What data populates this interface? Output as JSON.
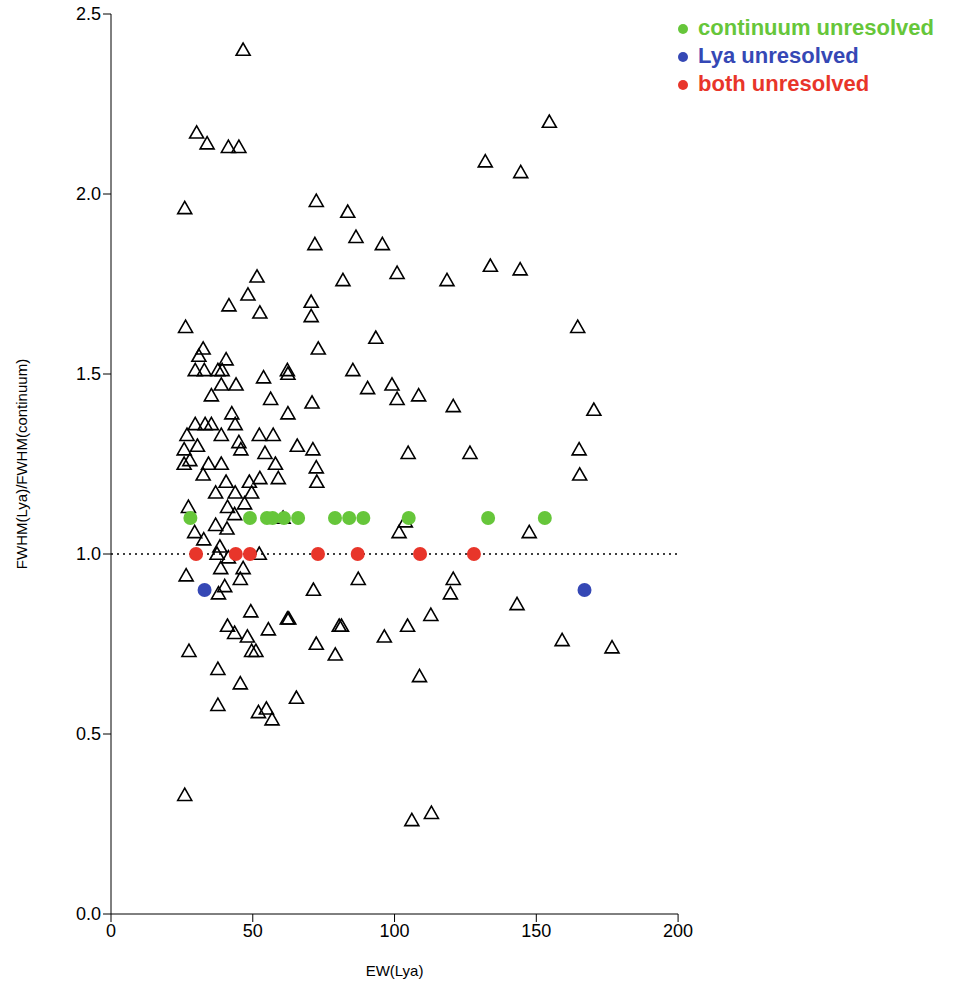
{
  "chart_data": {
    "type": "scatter",
    "x_label": "EW(Lya)",
    "y_label": "FWHM(Lya)/FWHM(continuum)",
    "xlim": [
      0,
      200
    ],
    "ylim": [
      0,
      2.5
    ],
    "xticks": [
      0,
      50,
      100,
      150,
      200
    ],
    "yticks": [
      {
        "value": 0,
        "label": "0.0"
      },
      {
        "value": 0.5,
        "label": "0.5"
      },
      {
        "value": 1,
        "label": "1.0"
      },
      {
        "value": 1.5,
        "label": "1.5"
      },
      {
        "value": 2,
        "label": "2.0"
      },
      {
        "value": 2.5,
        "label": "2.5"
      }
    ],
    "legend": "top",
    "reference_lines": [
      {
        "y": 1,
        "line_style": "dotted"
      }
    ],
    "series": [
      {
        "color": "#000000",
        "marker": "triangle",
        "x": [
          46.6,
          30.2,
          33.9,
          41.4,
          45.1,
          26.0,
          154.6,
          132.0,
          144.5,
          72.4,
          83.5,
          86.4,
          95.7,
          71.9,
          81.8,
          100.9,
          133.8,
          144.3,
          118.5,
          51.5,
          48.3,
          41.6,
          52.5,
          70.6,
          70.6,
          26.3,
          164.6,
          93.4,
          73.1,
          32.5,
          31.0,
          32.9,
          29.7,
          37.7,
          39.2,
          40.6,
          53.8,
          62.2,
          62.4,
          85.3,
          90.5,
          99.1,
          100.9,
          108.5,
          120.7,
          44.1,
          38.9,
          56.3,
          70.9,
          35.4,
          42.6,
          62.4,
          170.3,
          35.4,
          29.7,
          33.2,
          43.8,
          38.9,
          26.8,
          52.3,
          57.2,
          25.8,
          30.5,
          45.1,
          45.8,
          65.7,
          71.2,
          104.8,
          126.6,
          165.1,
          27.8,
          34.4,
          38.9,
          54.3,
          58.0,
          72.4,
          72.6,
          165.3,
          25.8,
          32.5,
          40.6,
          48.8,
          52.5,
          59.0,
          43.8,
          36.9,
          49.6,
          41.1,
          27.3,
          60.7,
          103.8,
          101.6,
          147.5,
          47.1,
          36.9,
          40.9,
          43.6,
          29.5,
          32.7,
          38.4,
          52.3,
          37.4,
          41.4,
          26.5,
          38.7,
          46.6,
          45.6,
          40.1,
          37.9,
          87.2,
          71.4,
          120.7,
          119.7,
          143.2,
          112.8,
          49.3,
          62.2,
          62.7,
          81.3,
          80.5,
          41.1,
          43.6,
          55.5,
          104.6,
          48.1,
          96.4,
          159.1,
          176.7,
          27.5,
          49.6,
          51.1,
          72.4,
          79.1,
          108.8,
          37.7,
          45.6,
          37.7,
          52.0,
          54.8,
          56.8,
          65.4,
          26.0,
          106.1,
          113.0
        ],
        "values": [
          2.4,
          2.17,
          2.14,
          2.13,
          2.13,
          1.96,
          2.2,
          2.09,
          2.06,
          1.98,
          1.95,
          1.88,
          1.86,
          1.86,
          1.76,
          1.78,
          1.8,
          1.79,
          1.76,
          1.77,
          1.72,
          1.69,
          1.67,
          1.7,
          1.66,
          1.63,
          1.63,
          1.6,
          1.57,
          1.57,
          1.55,
          1.51,
          1.51,
          1.51,
          1.51,
          1.54,
          1.49,
          1.51,
          1.5,
          1.51,
          1.46,
          1.47,
          1.43,
          1.44,
          1.41,
          1.47,
          1.47,
          1.43,
          1.42,
          1.44,
          1.39,
          1.39,
          1.4,
          1.36,
          1.36,
          1.36,
          1.36,
          1.33,
          1.33,
          1.33,
          1.33,
          1.29,
          1.3,
          1.31,
          1.29,
          1.3,
          1.29,
          1.28,
          1.28,
          1.29,
          1.26,
          1.25,
          1.25,
          1.28,
          1.25,
          1.24,
          1.2,
          1.22,
          1.25,
          1.22,
          1.2,
          1.2,
          1.21,
          1.21,
          1.17,
          1.17,
          1.17,
          1.13,
          1.13,
          1.1,
          1.09,
          1.06,
          1.06,
          1.14,
          1.08,
          1.07,
          1.11,
          1.06,
          1.04,
          1.02,
          1.0,
          1.0,
          0.99,
          0.94,
          0.96,
          0.96,
          0.93,
          0.91,
          0.89,
          0.93,
          0.9,
          0.93,
          0.89,
          0.86,
          0.83,
          0.84,
          0.82,
          0.82,
          0.8,
          0.8,
          0.8,
          0.78,
          0.79,
          0.8,
          0.77,
          0.77,
          0.76,
          0.74,
          0.73,
          0.73,
          0.73,
          0.75,
          0.72,
          0.66,
          0.68,
          0.64,
          0.58,
          0.56,
          0.57,
          0.54,
          0.6,
          0.33,
          0.26,
          0.28
        ]
      },
      {
        "name": "continuum unresolved",
        "color": "#66c63a",
        "marker": "circle",
        "x": [
          28,
          49,
          55,
          57,
          61,
          66,
          79,
          84,
          89,
          105,
          133,
          153
        ],
        "values": [
          1.1,
          1.1,
          1.1,
          1.1,
          1.1,
          1.1,
          1.1,
          1.1,
          1.1,
          1.1,
          1.1,
          1.1
        ]
      },
      {
        "name": "Lya unresolved",
        "color": "#3548b5",
        "marker": "circle",
        "x": [
          33,
          167
        ],
        "values": [
          0.9,
          0.9
        ]
      },
      {
        "name": "both unresolved",
        "color": "#e8352a",
        "marker": "circle",
        "x": [
          30,
          44,
          49,
          73,
          87,
          109,
          128
        ],
        "values": [
          1.0,
          1.0,
          1.0,
          1.0,
          1.0,
          1.0,
          1.0
        ]
      }
    ]
  }
}
